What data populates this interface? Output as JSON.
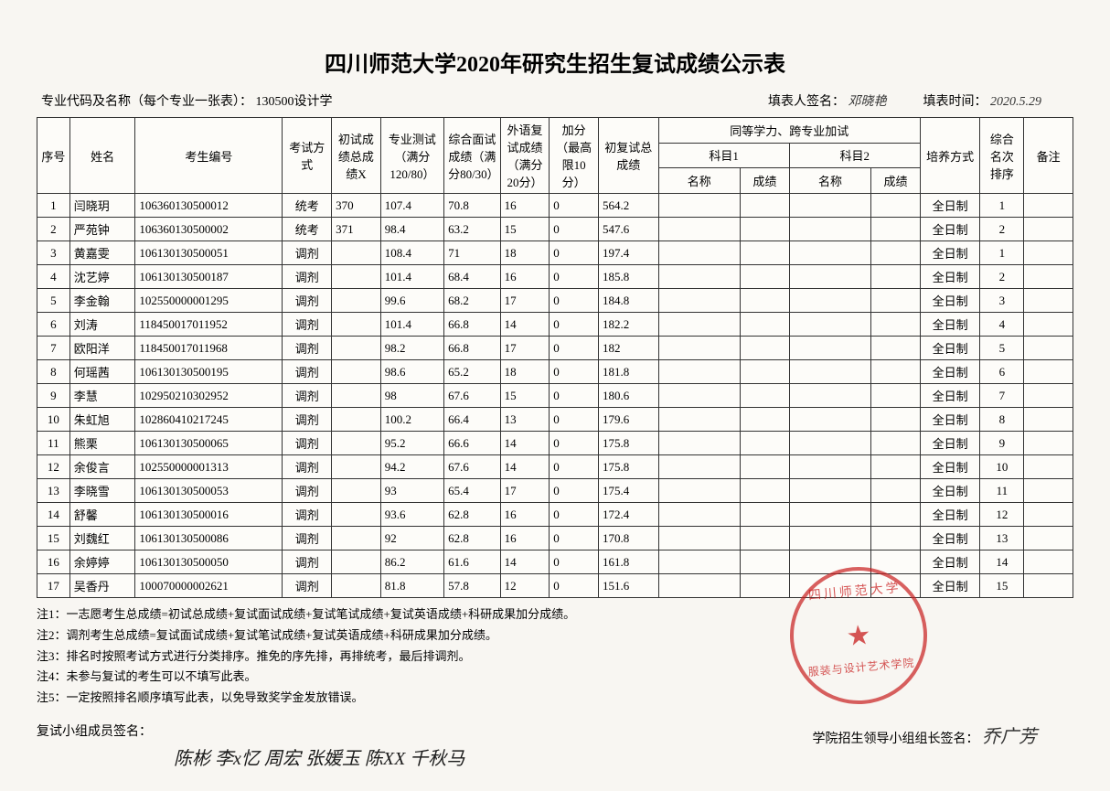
{
  "title": "四川师范大学2020年研究生招生复试成绩公示表",
  "meta": {
    "major_label": "专业代码及名称（每个专业一张表）：",
    "major_value": "130500设计学",
    "filler_label": "填表人签名：",
    "filler_value": "邓晓艳",
    "date_label": "填表时间：",
    "date_value": "2020.5.29"
  },
  "headers": {
    "seq": "序号",
    "name": "姓名",
    "candidate_id": "考生编号",
    "exam_method": "考试方式",
    "prelim_score": "初试成绩总成绩X",
    "major_test": "专业测试（满分120/80）",
    "interview": "综合面试成绩（满分80/30）",
    "foreign_lang": "外语复试成绩（满分20分）",
    "bonus": "加分（最高限10分）",
    "retest_total": "初复试总成绩",
    "equiv_group": "同等学力、跨专业加试",
    "subject1": "科目1",
    "subject2": "科目2",
    "subject_name": "名称",
    "subject_score": "成绩",
    "mode": "培养方式",
    "rank": "综合名次排序",
    "note": "备注"
  },
  "rows": [
    {
      "seq": "1",
      "name": "闫晓玥",
      "id": "106360130500012",
      "method": "统考",
      "prelim": "370",
      "major": "107.4",
      "interview": "70.8",
      "lang": "16",
      "bonus": "0",
      "total": "564.2",
      "s1n": "",
      "s1s": "",
      "s2n": "",
      "s2s": "",
      "mode": "全日制",
      "rank": "1",
      "note": ""
    },
    {
      "seq": "2",
      "name": "严苑钟",
      "id": "106360130500002",
      "method": "统考",
      "prelim": "371",
      "major": "98.4",
      "interview": "63.2",
      "lang": "15",
      "bonus": "0",
      "total": "547.6",
      "s1n": "",
      "s1s": "",
      "s2n": "",
      "s2s": "",
      "mode": "全日制",
      "rank": "2",
      "note": ""
    },
    {
      "seq": "3",
      "name": "黄嘉雯",
      "id": "106130130500051",
      "method": "调剂",
      "prelim": "",
      "major": "108.4",
      "interview": "71",
      "lang": "18",
      "bonus": "0",
      "total": "197.4",
      "s1n": "",
      "s1s": "",
      "s2n": "",
      "s2s": "",
      "mode": "全日制",
      "rank": "1",
      "note": ""
    },
    {
      "seq": "4",
      "name": "沈艺婷",
      "id": "106130130500187",
      "method": "调剂",
      "prelim": "",
      "major": "101.4",
      "interview": "68.4",
      "lang": "16",
      "bonus": "0",
      "total": "185.8",
      "s1n": "",
      "s1s": "",
      "s2n": "",
      "s2s": "",
      "mode": "全日制",
      "rank": "2",
      "note": ""
    },
    {
      "seq": "5",
      "name": "李金翰",
      "id": "102550000001295",
      "method": "调剂",
      "prelim": "",
      "major": "99.6",
      "interview": "68.2",
      "lang": "17",
      "bonus": "0",
      "total": "184.8",
      "s1n": "",
      "s1s": "",
      "s2n": "",
      "s2s": "",
      "mode": "全日制",
      "rank": "3",
      "note": ""
    },
    {
      "seq": "6",
      "name": "刘涛",
      "id": "118450017011952",
      "method": "调剂",
      "prelim": "",
      "major": "101.4",
      "interview": "66.8",
      "lang": "14",
      "bonus": "0",
      "total": "182.2",
      "s1n": "",
      "s1s": "",
      "s2n": "",
      "s2s": "",
      "mode": "全日制",
      "rank": "4",
      "note": ""
    },
    {
      "seq": "7",
      "name": "欧阳洋",
      "id": "118450017011968",
      "method": "调剂",
      "prelim": "",
      "major": "98.2",
      "interview": "66.8",
      "lang": "17",
      "bonus": "0",
      "total": "182",
      "s1n": "",
      "s1s": "",
      "s2n": "",
      "s2s": "",
      "mode": "全日制",
      "rank": "5",
      "note": ""
    },
    {
      "seq": "8",
      "name": "何瑶茜",
      "id": "106130130500195",
      "method": "调剂",
      "prelim": "",
      "major": "98.6",
      "interview": "65.2",
      "lang": "18",
      "bonus": "0",
      "total": "181.8",
      "s1n": "",
      "s1s": "",
      "s2n": "",
      "s2s": "",
      "mode": "全日制",
      "rank": "6",
      "note": ""
    },
    {
      "seq": "9",
      "name": "李慧",
      "id": "102950210302952",
      "method": "调剂",
      "prelim": "",
      "major": "98",
      "interview": "67.6",
      "lang": "15",
      "bonus": "0",
      "total": "180.6",
      "s1n": "",
      "s1s": "",
      "s2n": "",
      "s2s": "",
      "mode": "全日制",
      "rank": "7",
      "note": ""
    },
    {
      "seq": "10",
      "name": "朱虹旭",
      "id": "102860410217245",
      "method": "调剂",
      "prelim": "",
      "major": "100.2",
      "interview": "66.4",
      "lang": "13",
      "bonus": "0",
      "total": "179.6",
      "s1n": "",
      "s1s": "",
      "s2n": "",
      "s2s": "",
      "mode": "全日制",
      "rank": "8",
      "note": ""
    },
    {
      "seq": "11",
      "name": "熊栗",
      "id": "106130130500065",
      "method": "调剂",
      "prelim": "",
      "major": "95.2",
      "interview": "66.6",
      "lang": "14",
      "bonus": "0",
      "total": "175.8",
      "s1n": "",
      "s1s": "",
      "s2n": "",
      "s2s": "",
      "mode": "全日制",
      "rank": "9",
      "note": ""
    },
    {
      "seq": "12",
      "name": "余俊言",
      "id": "102550000001313",
      "method": "调剂",
      "prelim": "",
      "major": "94.2",
      "interview": "67.6",
      "lang": "14",
      "bonus": "0",
      "total": "175.8",
      "s1n": "",
      "s1s": "",
      "s2n": "",
      "s2s": "",
      "mode": "全日制",
      "rank": "10",
      "note": ""
    },
    {
      "seq": "13",
      "name": "李晓雪",
      "id": "106130130500053",
      "method": "调剂",
      "prelim": "",
      "major": "93",
      "interview": "65.4",
      "lang": "17",
      "bonus": "0",
      "total": "175.4",
      "s1n": "",
      "s1s": "",
      "s2n": "",
      "s2s": "",
      "mode": "全日制",
      "rank": "11",
      "note": ""
    },
    {
      "seq": "14",
      "name": "舒馨",
      "id": "106130130500016",
      "method": "调剂",
      "prelim": "",
      "major": "93.6",
      "interview": "62.8",
      "lang": "16",
      "bonus": "0",
      "total": "172.4",
      "s1n": "",
      "s1s": "",
      "s2n": "",
      "s2s": "",
      "mode": "全日制",
      "rank": "12",
      "note": ""
    },
    {
      "seq": "15",
      "name": "刘魏红",
      "id": "106130130500086",
      "method": "调剂",
      "prelim": "",
      "major": "92",
      "interview": "62.8",
      "lang": "16",
      "bonus": "0",
      "total": "170.8",
      "s1n": "",
      "s1s": "",
      "s2n": "",
      "s2s": "",
      "mode": "全日制",
      "rank": "13",
      "note": ""
    },
    {
      "seq": "16",
      "name": "余婷婷",
      "id": "106130130500050",
      "method": "调剂",
      "prelim": "",
      "major": "86.2",
      "interview": "61.6",
      "lang": "14",
      "bonus": "0",
      "total": "161.8",
      "s1n": "",
      "s1s": "",
      "s2n": "",
      "s2s": "",
      "mode": "全日制",
      "rank": "14",
      "note": ""
    },
    {
      "seq": "17",
      "name": "吴香丹",
      "id": "100070000002621",
      "method": "调剂",
      "prelim": "",
      "major": "81.8",
      "interview": "57.8",
      "lang": "12",
      "bonus": "0",
      "total": "151.6",
      "s1n": "",
      "s1s": "",
      "s2n": "",
      "s2s": "",
      "mode": "全日制",
      "rank": "15",
      "note": ""
    }
  ],
  "notes": {
    "n1": "注1：一志愿考生总成绩=初试总成绩+复试面试成绩+复试笔试成绩+复试英语成绩+科研成果加分成绩。",
    "n2": "注2：调剂考生总成绩=复试面试成绩+复试笔试成绩+复试英语成绩+科研成果加分成绩。",
    "n3": "注3：排名时按照考试方式进行分类排序。推免的序先排，再排统考，最后排调剂。",
    "n4": "注4：未参与复试的考生可以不填写此表。",
    "n5": "注5：一定按照排名顺序填写此表，以免导致奖学金发放错误。"
  },
  "signatures": {
    "group_label": "复试小组成员签名：",
    "leader_label": "学院招生领导小组组长签名：",
    "group_sigs": "陈彬 李x忆 周宏 张媛玉 陈XX 千秋马",
    "leader_sig": "乔广芳"
  },
  "stamp": {
    "top": "四川师范大学",
    "bottom": "服装与设计艺术学院"
  }
}
